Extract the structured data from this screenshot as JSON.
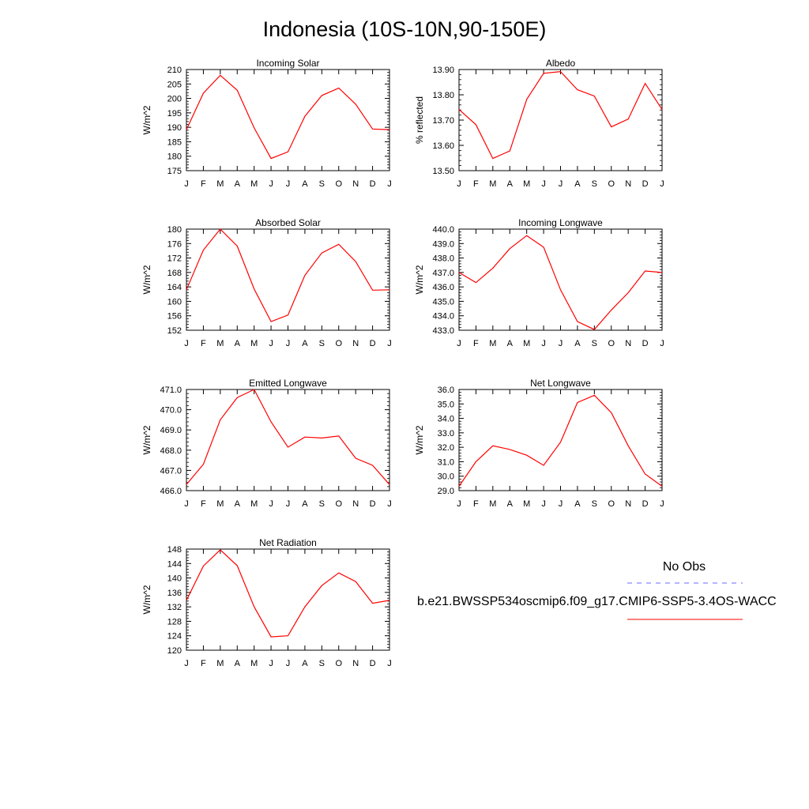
{
  "title": "Indonesia (10S-10N,90-150E)",
  "line_color": "#ff0000",
  "obs_line_color": "#6a6aff",
  "legend": {
    "obs_label": "No Obs",
    "model_label": "b.e21.BWSSP534oscmip6.f09_g17.CMIP6-SSP5-3.4OS-WACC"
  },
  "chart_data": [
    {
      "type": "line",
      "title": "Incoming Solar",
      "ylabel": "W/m^2",
      "categories": [
        "J",
        "F",
        "M",
        "A",
        "M",
        "J",
        "J",
        "A",
        "S",
        "O",
        "N",
        "D",
        "J"
      ],
      "ylim": [
        175,
        210
      ],
      "yticks": [
        "175",
        "180",
        "185",
        "190",
        "195",
        "200",
        "205",
        "210"
      ],
      "values": [
        189.2,
        201.8,
        208.0,
        202.8,
        189.8,
        179.2,
        181.5,
        193.8,
        201.0,
        203.6,
        198.0,
        189.4,
        189.2
      ]
    },
    {
      "type": "line",
      "title": "Albedo",
      "ylabel": "% reflected",
      "categories": [
        "J",
        "F",
        "M",
        "A",
        "M",
        "J",
        "J",
        "A",
        "S",
        "O",
        "N",
        "D",
        "J"
      ],
      "ylim": [
        13.5,
        13.9
      ],
      "yticks": [
        "13.50",
        "13.60",
        "13.70",
        "13.80",
        "13.90"
      ],
      "values": [
        13.742,
        13.682,
        13.548,
        13.578,
        13.782,
        13.885,
        13.892,
        13.82,
        13.795,
        13.673,
        13.704,
        13.845,
        13.742
      ]
    },
    {
      "type": "line",
      "title": "Absorbed Solar",
      "ylabel": "W/m^2",
      "categories": [
        "J",
        "F",
        "M",
        "A",
        "M",
        "J",
        "J",
        "A",
        "S",
        "O",
        "N",
        "D",
        "J"
      ],
      "ylim": [
        152,
        180
      ],
      "yticks": [
        "152",
        "156",
        "160",
        "164",
        "168",
        "172",
        "176",
        "180"
      ],
      "values": [
        163.2,
        174.2,
        180.0,
        175.3,
        163.4,
        154.4,
        156.2,
        167.2,
        173.4,
        175.8,
        171.0,
        163.1,
        163.2
      ]
    },
    {
      "type": "line",
      "title": "Incoming Longwave",
      "ylabel": "W/m^2",
      "categories": [
        "J",
        "F",
        "M",
        "A",
        "M",
        "J",
        "J",
        "A",
        "S",
        "O",
        "N",
        "D",
        "J"
      ],
      "ylim": [
        433,
        440
      ],
      "yticks": [
        "433.0",
        "434.0",
        "435.0",
        "436.0",
        "437.0",
        "438.0",
        "439.0",
        "440.0"
      ],
      "values": [
        437.0,
        436.3,
        437.3,
        438.65,
        439.55,
        438.75,
        435.8,
        433.6,
        433.05,
        434.4,
        435.6,
        437.1,
        437.0
      ]
    },
    {
      "type": "line",
      "title": "Emitted Longwave",
      "ylabel": "W/m^2",
      "categories": [
        "J",
        "F",
        "M",
        "A",
        "M",
        "J",
        "J",
        "A",
        "S",
        "O",
        "N",
        "D",
        "J"
      ],
      "ylim": [
        466,
        471
      ],
      "yticks": [
        "466.0",
        "467.0",
        "468.0",
        "469.0",
        "470.0",
        "471.0"
      ],
      "values": [
        466.3,
        467.3,
        469.5,
        470.6,
        471.0,
        469.4,
        468.15,
        468.65,
        468.6,
        468.7,
        467.6,
        467.25,
        466.3
      ]
    },
    {
      "type": "line",
      "title": "Net Longwave",
      "ylabel": "W/m^2",
      "categories": [
        "J",
        "F",
        "M",
        "A",
        "M",
        "J",
        "J",
        "A",
        "S",
        "O",
        "N",
        "D",
        "J"
      ],
      "ylim": [
        29,
        36
      ],
      "yticks": [
        "29.0",
        "30.0",
        "31.0",
        "32.0",
        "33.0",
        "34.0",
        "35.0",
        "36.0"
      ],
      "values": [
        29.3,
        31.0,
        32.1,
        31.85,
        31.45,
        30.75,
        32.35,
        35.1,
        35.6,
        34.4,
        32.1,
        30.15,
        29.3
      ]
    },
    {
      "type": "line",
      "title": "Net Radiation",
      "ylabel": "W/m^2",
      "categories": [
        "J",
        "F",
        "M",
        "A",
        "M",
        "J",
        "J",
        "A",
        "S",
        "O",
        "N",
        "D",
        "J"
      ],
      "ylim": [
        120,
        148
      ],
      "yticks": [
        "120",
        "124",
        "128",
        "132",
        "136",
        "140",
        "144",
        "148"
      ],
      "values": [
        133.8,
        143.3,
        147.8,
        143.4,
        132.0,
        123.7,
        124.0,
        132.0,
        137.9,
        141.4,
        139.0,
        133.0,
        133.8
      ]
    }
  ]
}
